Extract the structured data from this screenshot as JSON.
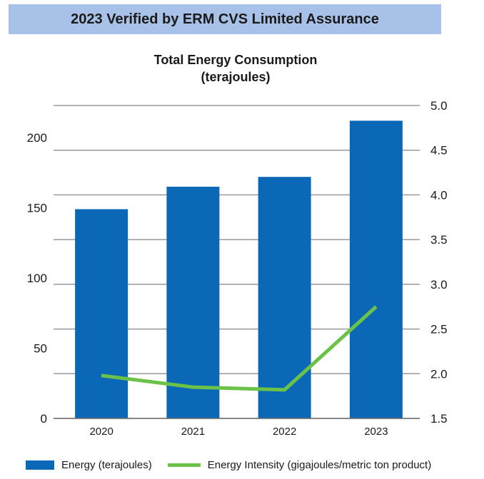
{
  "banner": {
    "text": "2023 Verified by ERM CVS Limited Assurance"
  },
  "chart_data": {
    "type": "bar",
    "title_line1": "Total Energy Consumption",
    "title_line2": "(terajoules)",
    "categories": [
      "2020",
      "2021",
      "2022",
      "2023"
    ],
    "y_left": {
      "min": 0,
      "max": 200,
      "ticks": [
        0,
        50,
        100,
        150,
        200
      ]
    },
    "y_right": {
      "min": 1.5,
      "max": 5.0,
      "ticks": [
        "1.5",
        "2.0",
        "2.5",
        "3.0",
        "3.5",
        "4.0",
        "4.5",
        "5.0"
      ]
    },
    "grid": true,
    "legend_position": "bottom",
    "series": [
      {
        "name": "Energy (terajoules)",
        "type": "bar",
        "axis": "left",
        "color": "#0b68b6",
        "values": [
          149,
          165,
          172,
          212
        ]
      },
      {
        "name": "Energy Intensity (gigajoules/metric ton product)",
        "type": "line",
        "axis": "right",
        "color": "#6ac247",
        "values": [
          1.98,
          1.85,
          1.82,
          2.75
        ]
      }
    ]
  }
}
